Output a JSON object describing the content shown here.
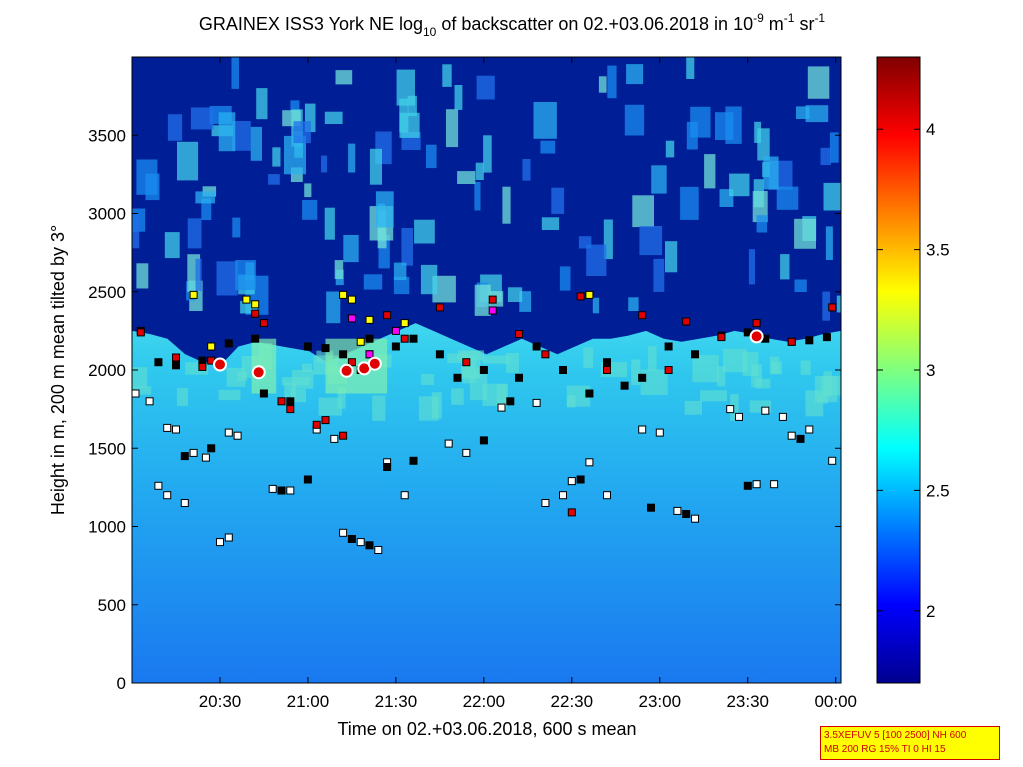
{
  "chart_data": {
    "type": "heatmap",
    "title": "GRAINEX ISS3 York NE log",
    "title_sub": "10",
    "title_rest": " of backscatter on 02.+03.06.2018 in 10",
    "title_exp1": "-9",
    "title_unit_m": " m",
    "title_exp2": "-1",
    "title_unit_sr": " sr",
    "title_exp3": "-1",
    "xlabel": "Time on 02.+03.06.2018, 600 s mean",
    "ylabel": "Height in m, 200 m mean tilted by 3°",
    "x_ticks": [
      "20:30",
      "21:00",
      "21:30",
      "22:00",
      "22:30",
      "23:00",
      "23:30",
      "00:00"
    ],
    "x_tick_hours": [
      20.5,
      21.0,
      21.5,
      22.0,
      22.5,
      23.0,
      23.5,
      24.0
    ],
    "xlim_hours": [
      20.0,
      24.03
    ],
    "y_ticks": [
      0,
      500,
      1000,
      1500,
      2000,
      2500,
      3000,
      3500
    ],
    "ylim": [
      0,
      4000
    ],
    "colorbar": {
      "range": [
        1.7,
        4.3
      ],
      "ticks": [
        2,
        2.5,
        3,
        3.5,
        4
      ],
      "tick_labels": [
        "2",
        "2.5",
        "3",
        "3.5",
        "4"
      ]
    },
    "boundary_layer_top_m": [
      2250,
      2230,
      2200,
      2100,
      2050,
      2030,
      2150,
      2180,
      2160,
      2140,
      2120,
      2050,
      2100,
      2150,
      2200,
      2250,
      2300,
      2250,
      2200,
      2150,
      2100,
      2150,
      2200,
      2150,
      2100,
      2150,
      2200,
      2200,
      2220,
      2250,
      2200,
      2180,
      2200,
      2220,
      2250,
      2230,
      2200,
      2180,
      2200,
      2230,
      2250
    ],
    "marker_series": [
      {
        "color": "#ffffff",
        "points": [
          [
            20.02,
            1850
          ],
          [
            20.1,
            1800
          ],
          [
            20.2,
            1630
          ],
          [
            20.25,
            1620
          ],
          [
            20.35,
            1470
          ],
          [
            20.42,
            1440
          ],
          [
            20.55,
            1600
          ],
          [
            20.6,
            1580
          ],
          [
            20.8,
            1240
          ],
          [
            20.9,
            1230
          ],
          [
            21.05,
            1620
          ],
          [
            21.15,
            1560
          ],
          [
            21.2,
            960
          ],
          [
            21.3,
            900
          ],
          [
            21.4,
            850
          ],
          [
            21.45,
            1410
          ],
          [
            21.55,
            1200
          ],
          [
            21.8,
            1530
          ],
          [
            21.9,
            1470
          ],
          [
            22.1,
            1760
          ],
          [
            22.3,
            1790
          ],
          [
            22.35,
            1150
          ],
          [
            22.45,
            1200
          ],
          [
            22.5,
            1290
          ],
          [
            22.6,
            1410
          ],
          [
            22.7,
            1200
          ],
          [
            22.9,
            1620
          ],
          [
            23.0,
            1600
          ],
          [
            23.1,
            1100
          ],
          [
            23.2,
            1050
          ],
          [
            23.4,
            1750
          ],
          [
            23.45,
            1700
          ],
          [
            23.55,
            1270
          ],
          [
            23.65,
            1270
          ],
          [
            23.75,
            1580
          ],
          [
            23.85,
            1620
          ],
          [
            23.98,
            1420
          ],
          [
            20.15,
            1260
          ],
          [
            20.2,
            1200
          ],
          [
            20.3,
            1150
          ],
          [
            20.5,
            900
          ],
          [
            20.55,
            930
          ],
          [
            23.6,
            1740
          ],
          [
            23.7,
            1700
          ]
        ]
      },
      {
        "color": "#000000",
        "points": [
          [
            20.05,
            2250
          ],
          [
            20.15,
            2050
          ],
          [
            20.25,
            2030
          ],
          [
            20.4,
            2060
          ],
          [
            20.55,
            2170
          ],
          [
            20.7,
            2200
          ],
          [
            20.75,
            1850
          ],
          [
            20.9,
            1800
          ],
          [
            21.0,
            2150
          ],
          [
            21.1,
            2140
          ],
          [
            21.2,
            2100
          ],
          [
            21.35,
            2200
          ],
          [
            21.5,
            2150
          ],
          [
            21.6,
            2200
          ],
          [
            21.75,
            2100
          ],
          [
            21.85,
            1950
          ],
          [
            22.0,
            2000
          ],
          [
            22.2,
            1950
          ],
          [
            22.3,
            2150
          ],
          [
            22.45,
            2000
          ],
          [
            22.6,
            1850
          ],
          [
            22.7,
            2050
          ],
          [
            22.8,
            1900
          ],
          [
            22.9,
            1950
          ],
          [
            23.05,
            2150
          ],
          [
            23.2,
            2100
          ],
          [
            23.35,
            2220
          ],
          [
            23.5,
            2240
          ],
          [
            23.6,
            2200
          ],
          [
            23.75,
            2180
          ],
          [
            23.85,
            2190
          ],
          [
            23.95,
            2210
          ],
          [
            20.3,
            1450
          ],
          [
            20.45,
            1500
          ],
          [
            20.85,
            1230
          ],
          [
            21.0,
            1300
          ],
          [
            21.25,
            920
          ],
          [
            21.35,
            880
          ],
          [
            22.0,
            1550
          ],
          [
            22.15,
            1800
          ],
          [
            22.55,
            1300
          ],
          [
            22.95,
            1120
          ],
          [
            23.15,
            1080
          ],
          [
            23.5,
            1260
          ],
          [
            23.8,
            1560
          ],
          [
            21.45,
            1380
          ],
          [
            21.6,
            1420
          ]
        ]
      },
      {
        "color": "#e00000",
        "points": [
          [
            20.05,
            2240
          ],
          [
            20.25,
            2080
          ],
          [
            20.4,
            2020
          ],
          [
            20.45,
            2060
          ],
          [
            20.7,
            2360
          ],
          [
            20.75,
            2300
          ],
          [
            20.9,
            1750
          ],
          [
            21.1,
            1680
          ],
          [
            21.2,
            1580
          ],
          [
            21.25,
            2050
          ],
          [
            21.3,
            2000
          ],
          [
            21.35,
            2100
          ],
          [
            21.45,
            2350
          ],
          [
            21.55,
            2200
          ],
          [
            21.75,
            2400
          ],
          [
            21.9,
            2050
          ],
          [
            22.05,
            2450
          ],
          [
            22.2,
            2230
          ],
          [
            22.35,
            2100
          ],
          [
            22.55,
            2470
          ],
          [
            22.7,
            2000
          ],
          [
            22.9,
            2350
          ],
          [
            23.05,
            2000
          ],
          [
            23.15,
            2310
          ],
          [
            23.35,
            2210
          ],
          [
            23.55,
            2300
          ],
          [
            23.75,
            2180
          ],
          [
            23.98,
            2400
          ],
          [
            22.5,
            1090
          ],
          [
            20.85,
            1800
          ],
          [
            21.05,
            1650
          ]
        ]
      },
      {
        "color": "#ffff00",
        "points": [
          [
            20.35,
            2480
          ],
          [
            20.65,
            2450
          ],
          [
            20.7,
            2420
          ],
          [
            21.2,
            2480
          ],
          [
            21.25,
            2450
          ],
          [
            21.35,
            2320
          ],
          [
            21.3,
            2180
          ],
          [
            20.45,
            2150
          ],
          [
            21.55,
            2300
          ],
          [
            22.6,
            2480
          ]
        ]
      },
      {
        "color": "#ff00ff",
        "points": [
          [
            21.25,
            2330
          ],
          [
            21.35,
            2100
          ],
          [
            21.5,
            2250
          ],
          [
            22.05,
            2380
          ]
        ]
      }
    ],
    "circle_markers": [
      [
        20.5,
        2035
      ],
      [
        20.72,
        1985
      ],
      [
        21.22,
        1995
      ],
      [
        21.32,
        2010
      ],
      [
        21.38,
        2040
      ],
      [
        23.55,
        2215
      ]
    ],
    "grid": false,
    "colormap": "jet"
  },
  "note_box": {
    "line1": "3.5XEFUV 5 [100 2500] NH 600",
    "line2": "MB 200 RG 15% TI 0 HI 15"
  }
}
